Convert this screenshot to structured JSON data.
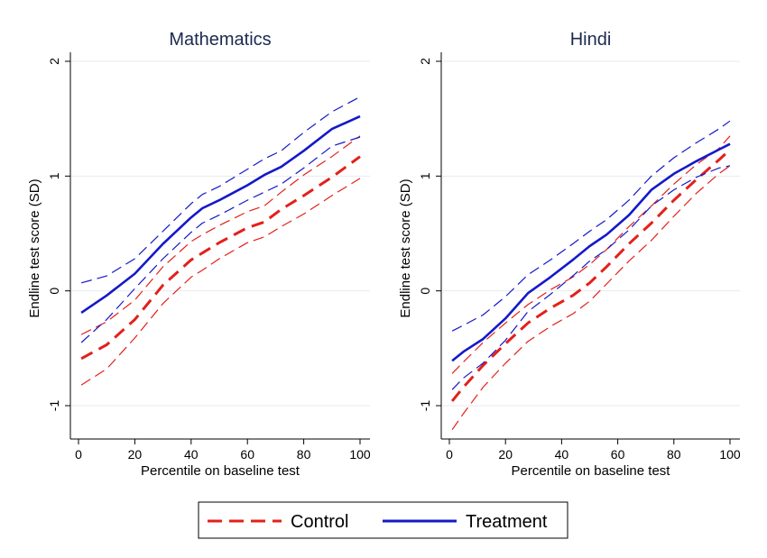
{
  "chart_data": [
    {
      "type": "line",
      "title": "Mathematics",
      "xlabel": "Percentile on baseline test",
      "ylabel": "Endline test score (SD)",
      "xlim": [
        0,
        100
      ],
      "ylim": [
        -1.3,
        2.05
      ],
      "x_ticks": [
        "0",
        "20",
        "40",
        "60",
        "80",
        "100"
      ],
      "y_ticks": [
        "-1",
        "0",
        "1",
        "2"
      ],
      "grid": "horizontal",
      "x": [
        1,
        10,
        20,
        30,
        40,
        44,
        50,
        60,
        66,
        72,
        80,
        90,
        100
      ],
      "series": [
        {
          "name": "Control",
          "style": "dashed",
          "color": "#e3201b",
          "values": [
            -0.59,
            -0.47,
            -0.25,
            0.05,
            0.27,
            0.33,
            0.42,
            0.55,
            0.6,
            0.71,
            0.83,
            0.99,
            1.17
          ]
        },
        {
          "style": "dashed-thin",
          "color": "#e3201b",
          "values": [
            -0.38,
            -0.27,
            -0.08,
            0.21,
            0.43,
            0.49,
            0.57,
            0.69,
            0.74,
            0.86,
            1.01,
            1.17,
            1.35
          ]
        },
        {
          "style": "dashed-thin",
          "color": "#e3201b",
          "values": [
            -0.82,
            -0.68,
            -0.41,
            -0.11,
            0.12,
            0.18,
            0.28,
            0.42,
            0.47,
            0.56,
            0.67,
            0.83,
            0.98
          ]
        },
        {
          "name": "Treatment",
          "style": "solid",
          "color": "#1419c8",
          "values": [
            -0.19,
            -0.04,
            0.15,
            0.41,
            0.64,
            0.72,
            0.79,
            0.92,
            1.01,
            1.08,
            1.22,
            1.41,
            1.52
          ]
        },
        {
          "style": "dashed-thin",
          "color": "#1419c8",
          "values": [
            0.07,
            0.13,
            0.28,
            0.52,
            0.76,
            0.84,
            0.91,
            1.06,
            1.15,
            1.22,
            1.38,
            1.56,
            1.69
          ]
        },
        {
          "style": "dashed-thin",
          "color": "#1419c8",
          "values": [
            -0.45,
            -0.25,
            0.02,
            0.28,
            0.51,
            0.59,
            0.66,
            0.79,
            0.86,
            0.93,
            1.07,
            1.26,
            1.34
          ]
        }
      ]
    },
    {
      "type": "line",
      "title": "Hindi",
      "xlabel": "Percentile on baseline test",
      "ylabel": "Endline test score (SD)",
      "xlim": [
        0,
        100
      ],
      "ylim": [
        -1.3,
        2.05
      ],
      "x_ticks": [
        "0",
        "20",
        "40",
        "60",
        "80",
        "100"
      ],
      "y_ticks": [
        "-1",
        "0",
        "1",
        "2"
      ],
      "grid": "horizontal",
      "x": [
        1,
        5,
        12,
        20,
        28,
        36,
        44,
        50,
        56,
        64,
        72,
        80,
        88,
        96,
        100
      ],
      "series": [
        {
          "name": "Control",
          "style": "dashed",
          "color": "#e3201b",
          "values": [
            -0.96,
            -0.84,
            -0.65,
            -0.46,
            -0.28,
            -0.15,
            -0.04,
            0.07,
            0.21,
            0.41,
            0.59,
            0.79,
            0.97,
            1.14,
            1.23
          ]
        },
        {
          "style": "dashed-thin",
          "color": "#e3201b",
          "values": [
            -0.72,
            -0.62,
            -0.45,
            -0.28,
            -0.12,
            0.01,
            0.12,
            0.23,
            0.36,
            0.56,
            0.74,
            0.93,
            1.1,
            1.24,
            1.35
          ]
        },
        {
          "style": "dashed-thin",
          "color": "#e3201b",
          "values": [
            -1.21,
            -1.07,
            -0.84,
            -0.63,
            -0.44,
            -0.31,
            -0.2,
            -0.09,
            0.06,
            0.26,
            0.44,
            0.65,
            0.85,
            1.02,
            1.09
          ]
        },
        {
          "name": "Treatment",
          "style": "solid",
          "color": "#1419c8",
          "values": [
            -0.61,
            -0.53,
            -0.42,
            -0.24,
            -0.02,
            0.12,
            0.27,
            0.39,
            0.49,
            0.66,
            0.88,
            1.02,
            1.13,
            1.23,
            1.28
          ]
        },
        {
          "style": "dashed-thin",
          "color": "#1419c8",
          "values": [
            -0.35,
            -0.3,
            -0.21,
            -0.05,
            0.14,
            0.27,
            0.41,
            0.52,
            0.62,
            0.79,
            1.0,
            1.16,
            1.29,
            1.41,
            1.48
          ]
        },
        {
          "style": "dashed-thin",
          "color": "#1419c8",
          "values": [
            -0.86,
            -0.76,
            -0.63,
            -0.43,
            -0.18,
            -0.03,
            0.13,
            0.26,
            0.36,
            0.53,
            0.74,
            0.88,
            0.99,
            1.07,
            1.09
          ]
        }
      ]
    }
  ],
  "legend": {
    "position": "bottom-center",
    "items": [
      {
        "label": "Control",
        "style": "dashed",
        "color": "#e3201b"
      },
      {
        "label": "Treatment",
        "style": "solid",
        "color": "#1419c8"
      }
    ]
  }
}
